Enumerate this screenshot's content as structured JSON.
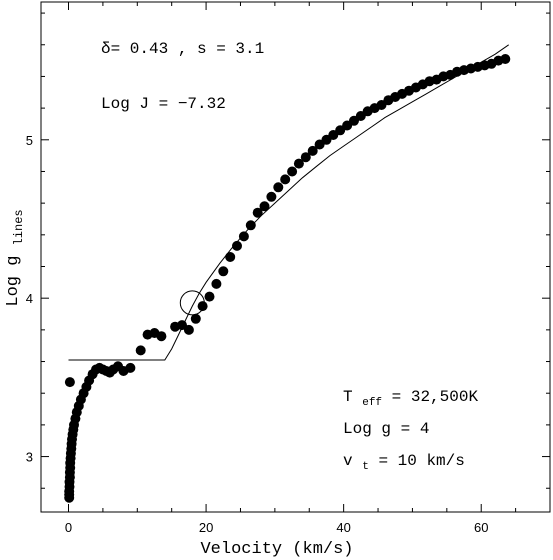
{
  "chart_data": {
    "type": "scatter",
    "xlabel": "Velocity (km/s)",
    "ylabel_main": "Log g",
    "ylabel_sub": "lines",
    "xlim": [
      -4,
      70
    ],
    "ylim": [
      2.65,
      5.87
    ],
    "xticks": [
      0,
      20,
      40,
      60
    ],
    "yticks": [
      3,
      4,
      5
    ],
    "annotations": {
      "line1": "δ=  0.43 , s = 3.1",
      "line2": "Log J = −7.32",
      "teff_main": "T",
      "teff_sub": "eff",
      "teff_val": " = 32,500K",
      "logg": "Log g = 4",
      "vt_main": "v",
      "vt_sub": "t",
      "vt_val": " = 10 km/s"
    },
    "series": [
      {
        "kind": "points",
        "points": [
          [
            0.1,
            2.74
          ],
          [
            0.1,
            2.76
          ],
          [
            0.1,
            2.78
          ],
          [
            0.15,
            2.81
          ],
          [
            0.15,
            2.84
          ],
          [
            0.2,
            2.87
          ],
          [
            0.2,
            2.9
          ],
          [
            0.25,
            2.93
          ],
          [
            0.25,
            2.96
          ],
          [
            0.3,
            2.99
          ],
          [
            0.35,
            3.02
          ],
          [
            0.4,
            3.05
          ],
          [
            0.45,
            3.08
          ],
          [
            0.5,
            3.11
          ],
          [
            0.6,
            3.14
          ],
          [
            0.7,
            3.17
          ],
          [
            0.8,
            3.2
          ],
          [
            1.0,
            3.24
          ],
          [
            1.2,
            3.28
          ],
          [
            1.5,
            3.32
          ],
          [
            1.8,
            3.36
          ],
          [
            2.2,
            3.4
          ],
          [
            2.6,
            3.44
          ],
          [
            3.0,
            3.48
          ],
          [
            3.5,
            3.52
          ],
          [
            4.0,
            3.55
          ],
          [
            4.5,
            3.56
          ],
          [
            5.0,
            3.55
          ],
          [
            5.5,
            3.54
          ],
          [
            6.0,
            3.53
          ],
          [
            6.5,
            3.55
          ],
          [
            7.2,
            3.57
          ],
          [
            8.0,
            3.54
          ],
          [
            9.0,
            3.56
          ],
          [
            0.2,
            3.47
          ],
          [
            10.5,
            3.67
          ],
          [
            11.5,
            3.77
          ],
          [
            12.5,
            3.78
          ],
          [
            13.5,
            3.76
          ],
          [
            15.5,
            3.82
          ],
          [
            16.5,
            3.83
          ],
          [
            17.5,
            3.8
          ],
          [
            18.5,
            3.87
          ],
          [
            19.5,
            3.95
          ],
          [
            20.5,
            4.01
          ],
          [
            21.5,
            4.09
          ],
          [
            22.5,
            4.17
          ],
          [
            23.5,
            4.26
          ],
          [
            24.5,
            4.33
          ],
          [
            25.5,
            4.39
          ],
          [
            26.5,
            4.46
          ],
          [
            27.5,
            4.54
          ],
          [
            28.5,
            4.58
          ],
          [
            29.5,
            4.64
          ],
          [
            30.5,
            4.7
          ],
          [
            31.5,
            4.75
          ],
          [
            32.5,
            4.8
          ],
          [
            33.5,
            4.85
          ],
          [
            34.5,
            4.89
          ],
          [
            35.5,
            4.93
          ],
          [
            36.5,
            4.97
          ],
          [
            37.5,
            5.0
          ],
          [
            38.5,
            5.03
          ],
          [
            39.5,
            5.06
          ],
          [
            40.5,
            5.09
          ],
          [
            41.5,
            5.12
          ],
          [
            42.5,
            5.15
          ],
          [
            43.5,
            5.18
          ],
          [
            44.5,
            5.2
          ],
          [
            45.5,
            5.22
          ],
          [
            46.5,
            5.25
          ],
          [
            47.5,
            5.27
          ],
          [
            48.5,
            5.29
          ],
          [
            49.5,
            5.31
          ],
          [
            50.5,
            5.33
          ],
          [
            51.5,
            5.35
          ],
          [
            52.5,
            5.37
          ],
          [
            53.5,
            5.38
          ],
          [
            54.5,
            5.4
          ],
          [
            55.5,
            5.41
          ],
          [
            56.5,
            5.43
          ],
          [
            57.5,
            5.44
          ],
          [
            58.5,
            5.45
          ],
          [
            59.5,
            5.46
          ],
          [
            60.5,
            5.47
          ],
          [
            61.5,
            5.48
          ],
          [
            62.5,
            5.5
          ],
          [
            63.5,
            5.51
          ]
        ]
      },
      {
        "kind": "model-curve",
        "points": [
          [
            0,
            3.61
          ],
          [
            14,
            3.61
          ],
          [
            15,
            3.68
          ],
          [
            16,
            3.77
          ],
          [
            17,
            3.86
          ],
          [
            18,
            3.95
          ],
          [
            19,
            4.03
          ],
          [
            20,
            4.1
          ],
          [
            22,
            4.22
          ],
          [
            24,
            4.33
          ],
          [
            26,
            4.43
          ],
          [
            28,
            4.52
          ],
          [
            30,
            4.6
          ],
          [
            32,
            4.68
          ],
          [
            34,
            4.76
          ],
          [
            36,
            4.83
          ],
          [
            38,
            4.9
          ],
          [
            40,
            4.96
          ],
          [
            42,
            5.02
          ],
          [
            44,
            5.08
          ],
          [
            46,
            5.14
          ],
          [
            48,
            5.19
          ],
          [
            50,
            5.24
          ],
          [
            52,
            5.29
          ],
          [
            54,
            5.34
          ],
          [
            56,
            5.39
          ],
          [
            58,
            5.44
          ],
          [
            60,
            5.49
          ],
          [
            62,
            5.54
          ],
          [
            64,
            5.6
          ]
        ]
      },
      {
        "kind": "open-circle",
        "points": [
          [
            18.0,
            3.97
          ]
        ]
      }
    ]
  }
}
